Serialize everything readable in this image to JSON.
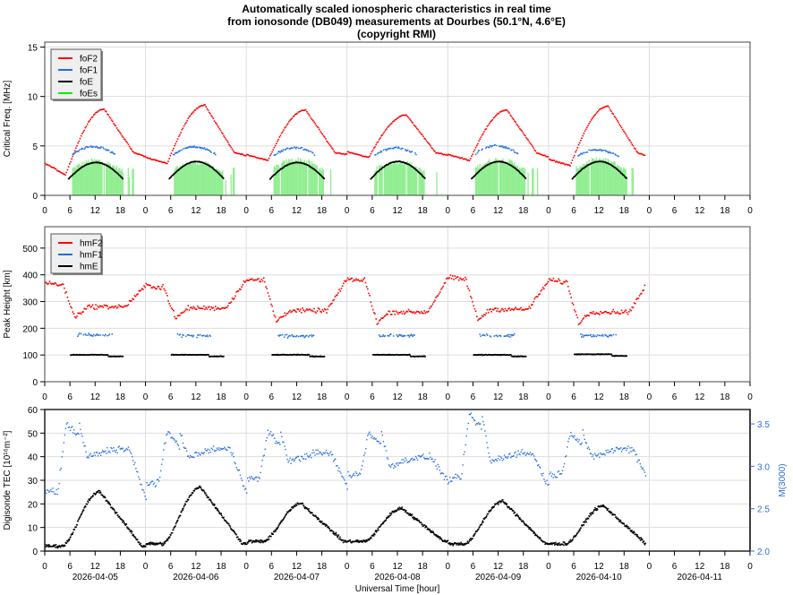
{
  "title": {
    "line1": "Automatically scaled ionospheric characteristics in real time",
    "line2": "from ionosonde (DB049) measurements at Dourbes (50.1°N, 4.6°E)",
    "line3": "(copyright RMI)"
  },
  "colors": {
    "foF2": "#ff0000",
    "foF1": "#1f6fe0",
    "foE": "#000000",
    "foEs": "#90ee90",
    "foEs_legend": "#00ee00",
    "M3000": "#2a6fdb",
    "grid": "#dddddd"
  },
  "chart_data": [
    {
      "type": "scatter",
      "panel": "frequency",
      "ylabel": "Critical Freq. [MHz]",
      "ylim": [
        0,
        15.5
      ],
      "yticks": [
        "0",
        "5",
        "10",
        "15"
      ],
      "ytick_values": [
        0,
        5,
        10,
        15
      ],
      "xticks": [
        "0",
        "6",
        "12",
        "18",
        "0",
        "6",
        "12",
        "18",
        "0",
        "6",
        "12",
        "18",
        "0",
        "6",
        "12",
        "18",
        "0",
        "6",
        "12",
        "18",
        "0",
        "6",
        "12",
        "18",
        "0",
        "6",
        "12",
        "18",
        "0"
      ],
      "legend": [
        "foF2",
        "foF1",
        "foE",
        "foEs"
      ],
      "legend_position": "top-left",
      "days": [
        "2026-04-05",
        "2026-04-06",
        "2026-04-07",
        "2026-04-08",
        "2026-04-09",
        "2026-04-10"
      ],
      "series": [
        {
          "name": "foF2",
          "day_peak_MHz": [
            8.7,
            9.1,
            8.6,
            8.1,
            8.6,
            9.0
          ],
          "night_min_MHz": [
            2.3,
            3.2,
            3.5,
            3.8,
            3.5,
            3.0
          ]
        },
        {
          "name": "foF1",
          "day_peak_MHz": [
            4.9,
            4.9,
            4.8,
            4.8,
            5.0,
            4.6
          ]
        },
        {
          "name": "foE",
          "day_peak_MHz": [
            3.3,
            3.4,
            3.3,
            3.4,
            3.4,
            3.4
          ]
        },
        {
          "name": "foEs",
          "day_peak_MHz": [
            3.8,
            3.6,
            3.9,
            3.7,
            3.9,
            3.9
          ]
        }
      ]
    },
    {
      "type": "scatter",
      "panel": "height",
      "ylabel": "Peak Height [km]",
      "ylim": [
        0,
        580
      ],
      "yticks": [
        "0",
        "100",
        "200",
        "300",
        "400",
        "500"
      ],
      "ytick_values": [
        0,
        100,
        200,
        300,
        400,
        500
      ],
      "xticks": [
        "0",
        "6",
        "12",
        "18",
        "0",
        "6",
        "12",
        "18",
        "0",
        "6",
        "12",
        "18",
        "0",
        "6",
        "12",
        "18",
        "0",
        "6",
        "12",
        "18",
        "0",
        "6",
        "12",
        "18",
        "0",
        "6",
        "12",
        "18",
        "0"
      ],
      "legend": [
        "hmF2",
        "hmF1",
        "hmE"
      ],
      "legend_position": "top-left",
      "series": [
        {
          "name": "hmF2",
          "day_mean_km": [
            280,
            275,
            265,
            260,
            270,
            260
          ],
          "night_peak_km": [
            380,
            360,
            385,
            385,
            390,
            380
          ]
        },
        {
          "name": "hmF1",
          "day_mean_km": [
            175,
            172,
            170,
            172,
            172,
            172
          ]
        },
        {
          "name": "hmE",
          "day_mean_km": [
            100,
            100,
            100,
            100,
            100,
            102
          ]
        }
      ]
    },
    {
      "type": "scatter",
      "panel": "tec",
      "ylabel": "Digisonde TEC [10¹⁶m⁻²]",
      "ylabel_right": "M(3000)",
      "xlabel": "Universal Time [hour]",
      "ylim": [
        0,
        60
      ],
      "ylim_right": [
        2.0,
        3.67
      ],
      "yticks": [
        "0",
        "10",
        "20",
        "30",
        "40",
        "50",
        "60"
      ],
      "ytick_values": [
        0,
        10,
        20,
        30,
        40,
        50,
        60
      ],
      "yticks_right": [
        "2.0",
        "2.5",
        "3.0",
        "3.5"
      ],
      "ytick_values_right": [
        2.0,
        2.5,
        3.0,
        3.5
      ],
      "xticks": [
        "0",
        "6",
        "12",
        "18",
        "0",
        "6",
        "12",
        "18",
        "0",
        "6",
        "12",
        "18",
        "0",
        "6",
        "12",
        "18",
        "0",
        "6",
        "12",
        "18",
        "0",
        "6",
        "12",
        "18",
        "0",
        "6",
        "12",
        "18",
        "0"
      ],
      "date_labels": [
        "2026-04-05",
        "2026-04-06",
        "2026-04-07",
        "2026-04-08",
        "2026-04-09",
        "2026-04-10",
        "2026-04-11"
      ],
      "series": [
        {
          "name": "TEC",
          "day_peak": [
            25,
            27,
            20,
            18,
            21,
            19
          ],
          "night_min": [
            2,
            3,
            4,
            4,
            3,
            3
          ]
        },
        {
          "name": "M(3000)",
          "morning_peak": [
            3.5,
            3.4,
            3.4,
            3.4,
            3.6,
            3.4
          ],
          "day_mean": [
            3.2,
            3.2,
            3.15,
            3.1,
            3.15,
            3.2
          ],
          "night_min": [
            2.6,
            2.7,
            2.75,
            2.8,
            2.75,
            2.8
          ]
        }
      ]
    }
  ]
}
